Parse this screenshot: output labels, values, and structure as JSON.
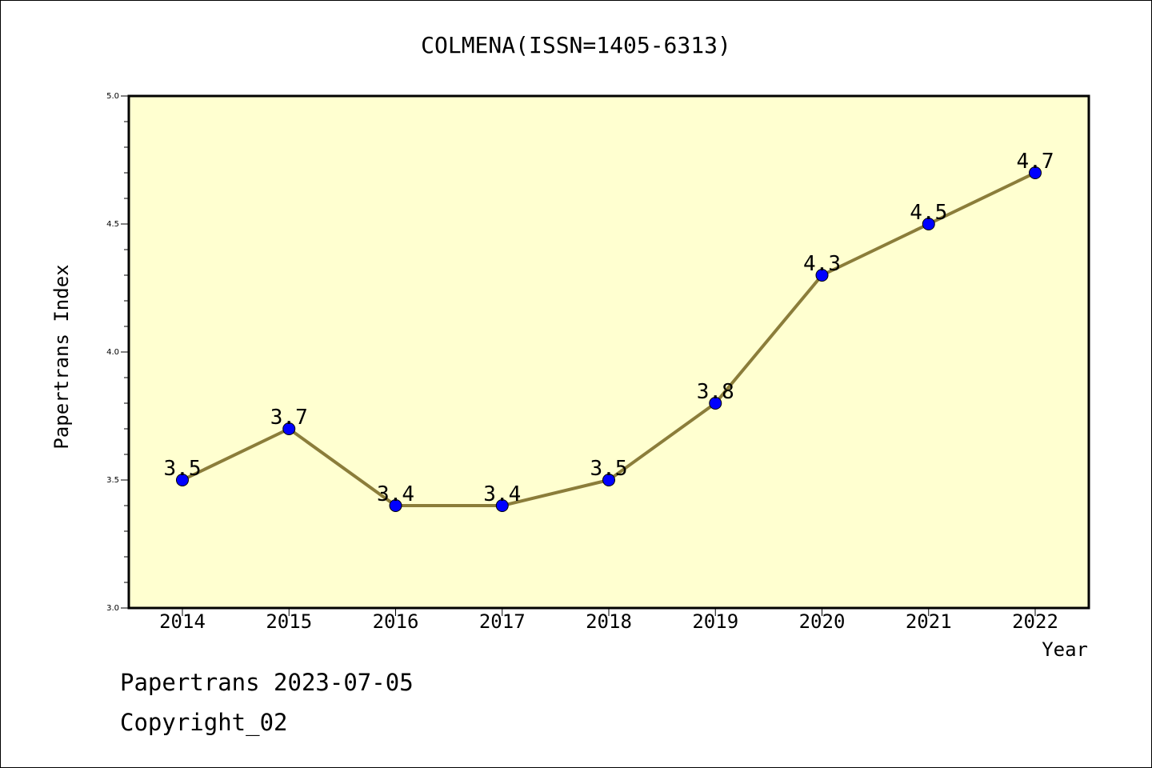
{
  "chart_data": {
    "type": "line",
    "title": "COLMENA(ISSN=1405-6313)",
    "xlabel": "Year",
    "ylabel": "Papertrans Index",
    "categories": [
      "2014",
      "2015",
      "2016",
      "2017",
      "2018",
      "2019",
      "2020",
      "2021",
      "2022"
    ],
    "series": [
      {
        "values": [
          3.5,
          3.7,
          3.4,
          3.4,
          3.5,
          3.8,
          4.3,
          4.5,
          4.7
        ],
        "labels": [
          "3.5",
          "3.7",
          "3.4",
          "3.4",
          "3.5",
          "3.8",
          "4.3",
          "4.5",
          "4.7"
        ],
        "line_color": "#8b7d3a",
        "marker_color": "#0000ff"
      }
    ],
    "ylim": [
      3.0,
      5.0
    ],
    "yticks": [
      "3.0",
      "3.5",
      "4.0",
      "4.5",
      "5.0"
    ],
    "grid": false,
    "plot_background": "#ffffd0"
  },
  "footer": {
    "line1": "Papertrans 2023-07-05",
    "line2": "Copyright_02"
  }
}
